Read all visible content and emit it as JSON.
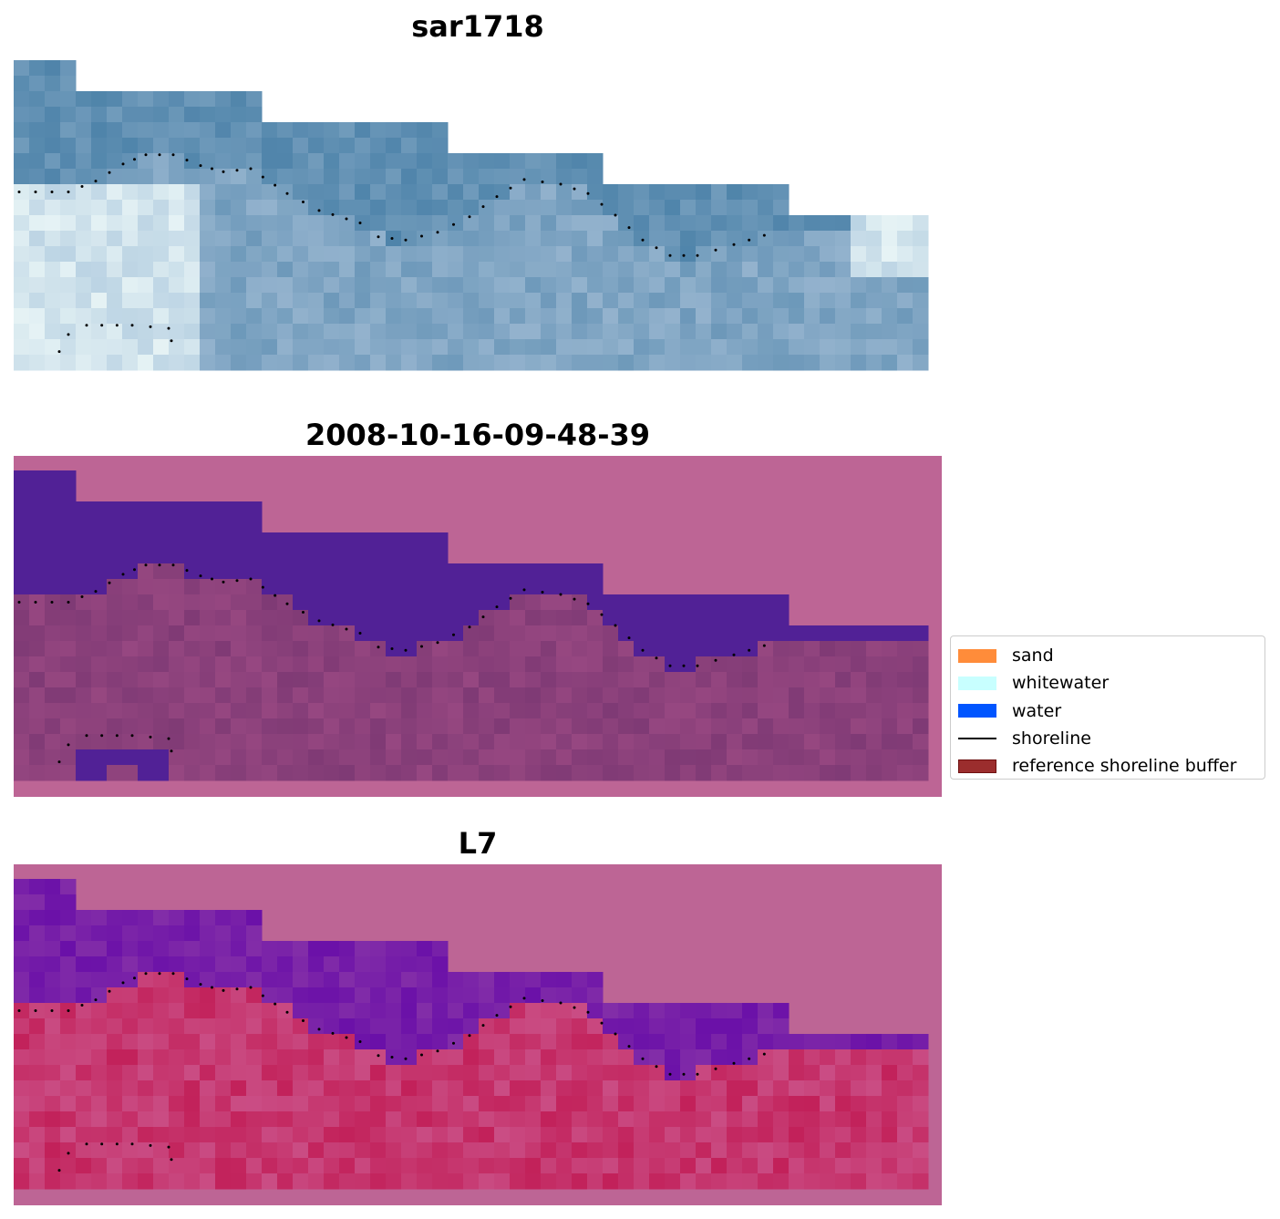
{
  "panels": [
    {
      "title": "sar1718",
      "style": "rgb"
    },
    {
      "title": "2008-10-16-09-48-39",
      "style": "class"
    },
    {
      "title": "L7",
      "style": "index"
    }
  ],
  "legend": {
    "items": [
      {
        "label": "sand",
        "kind": "patch",
        "color": "#ff8c3a"
      },
      {
        "label": "whitewater",
        "kind": "patch",
        "color": "#c8ffff"
      },
      {
        "label": "water",
        "kind": "patch",
        "color": "#0055ff"
      },
      {
        "label": "shoreline",
        "kind": "line",
        "color": "#000000"
      },
      {
        "label": "reference shoreline buffer",
        "kind": "patch",
        "color": "#9b2d2d",
        "edge": "#6e1010"
      }
    ]
  },
  "colors": {
    "nodata_background": "#bd6595",
    "class_water_overlay": "#512196",
    "class_land_base": "#7f3a75",
    "index_water": "#6a10a8",
    "index_land": "#c2215a",
    "rgb_water": "#4f84aa",
    "rgb_whitewater": "#e6f3f5"
  }
}
